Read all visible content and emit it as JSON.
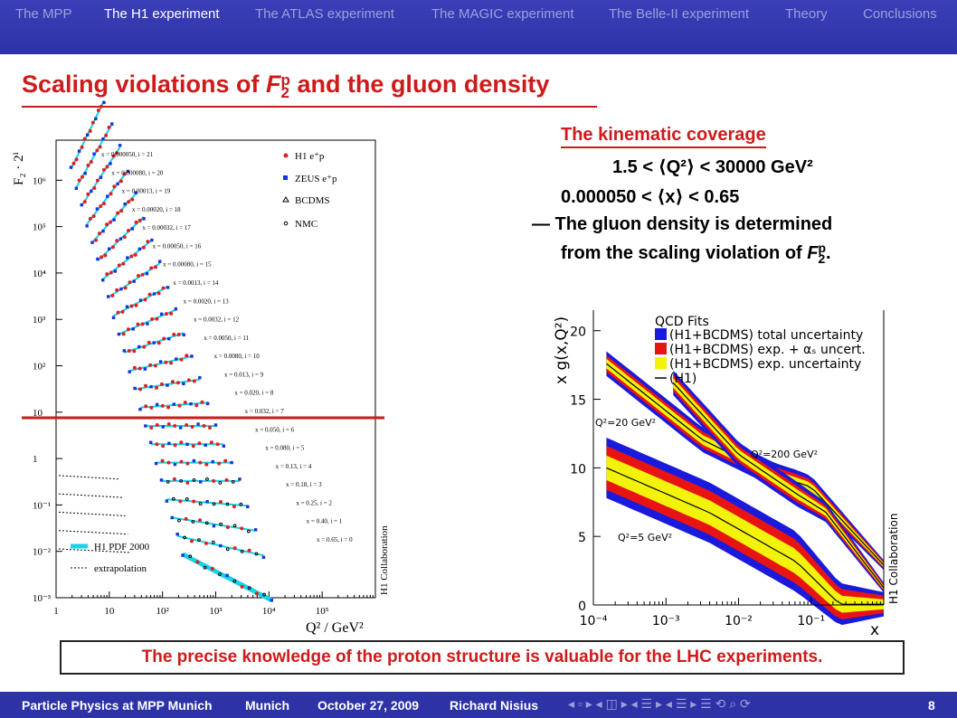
{
  "nav": {
    "tabs": [
      {
        "label": "The MPP",
        "active": false
      },
      {
        "label": "The H1 experiment",
        "active": true
      },
      {
        "label": "The ATLAS experiment",
        "active": false
      },
      {
        "label": "The MAGIC experiment",
        "active": false
      },
      {
        "label": "The Belle-II experiment",
        "active": false
      },
      {
        "label": "Theory",
        "active": false
      },
      {
        "label": "Conclusions",
        "active": false
      }
    ]
  },
  "slide": {
    "title_pre": "Scaling violations of ",
    "title_var": "F",
    "title_sup": "p",
    "title_sub": "2",
    "title_post": " and the gluon density",
    "kin_heading": "The kinematic coverage",
    "kin_q2": "1.5 < ⟨Q²⟩ < 30000 GeV²",
    "kin_x": "0.000050 < ⟨x⟩ < 0.65",
    "gluon_line1": "— The gluon density is determined",
    "gluon_line2_pre": "from the scaling violation of ",
    "gluon_line2_var": "F",
    "gluon_line2_sup": "p",
    "gluon_line2_sub": "2",
    "gluon_line2_post": ".",
    "conclusion": "The precise knowledge of the proton structure is valuable for the LHC experiments."
  },
  "plot1": {
    "ylabel": "F₂ · 2ⁱ",
    "xlabel": "Q² / GeV²",
    "x_ticks": [
      "1",
      "10",
      "10²",
      "10³",
      "10⁴",
      "10⁵"
    ],
    "y_ticks": [
      "10⁻³",
      "10⁻²",
      "10⁻¹",
      "1",
      "10",
      "10²",
      "10³",
      "10⁴",
      "10⁵",
      "10⁶"
    ],
    "legend": [
      "H1 e⁺p",
      "ZEUS e⁺p",
      "BCDMS",
      "NMC"
    ],
    "legend2": [
      "H1 PDF 2000",
      "extrapolation"
    ],
    "collab": "H1 Collaboration",
    "bins": [
      "x = 0.000050, i = 21",
      "x = 0.000080, i = 20",
      "x = 0.00013, i = 19",
      "x = 0.00020, i = 18",
      "x = 0.00032, i = 17",
      "x = 0.00050, i = 16",
      "x = 0.00080, i = 15",
      "x = 0.0013, i = 14",
      "x = 0.0020, i = 13",
      "x = 0.0032, i = 12",
      "x = 0.0050, i = 11",
      "x = 0.0080, i = 10",
      "x = 0.013, i = 9",
      "x = 0.020, i = 8",
      "x = 0.032, i = 7",
      "x = 0.050, i = 6",
      "x = 0.080, i = 5",
      "x = 0.13, i = 4",
      "x = 0.18, i = 3",
      "x = 0.25, i = 2",
      "x = 0.40, i = 1",
      "x = 0.65, i = 0"
    ]
  },
  "plot2": {
    "ylabel": "x g(x,Q²)",
    "xlabel": "x",
    "x_ticks": [
      "10⁻⁴",
      "10⁻³",
      "10⁻²",
      "10⁻¹"
    ],
    "y_ticks": [
      "0",
      "5",
      "10",
      "15",
      "20"
    ],
    "legend_title": "QCD Fits",
    "legend": [
      {
        "label": "(H1+BCDMS) total uncertainty",
        "color": "#1a1adc"
      },
      {
        "label": "(H1+BCDMS) exp. + αₛ uncert.",
        "color": "#e81414"
      },
      {
        "label": "(H1+BCDMS) exp. uncertainty",
        "color": "#f2f20a"
      },
      {
        "label": "(H1)",
        "color": "#000000"
      }
    ],
    "q2_labels": [
      "Q²=20 GeV²",
      "Q²=200 GeV²",
      "Q²=5 GeV²"
    ],
    "collab": "H1 Collaboration"
  },
  "footer": {
    "title": "Particle Physics at MPP Munich",
    "place": "Munich",
    "date": "October 27, 2009",
    "author": "Richard Nisius",
    "page": "8"
  },
  "controls": {
    "nav_symbols": "◂ ▫ ▸  ◂ ◫ ▸  ◂ ☰ ▸  ◂ ☰ ▸   ☰   ⟲ ⌕ ⟳"
  }
}
